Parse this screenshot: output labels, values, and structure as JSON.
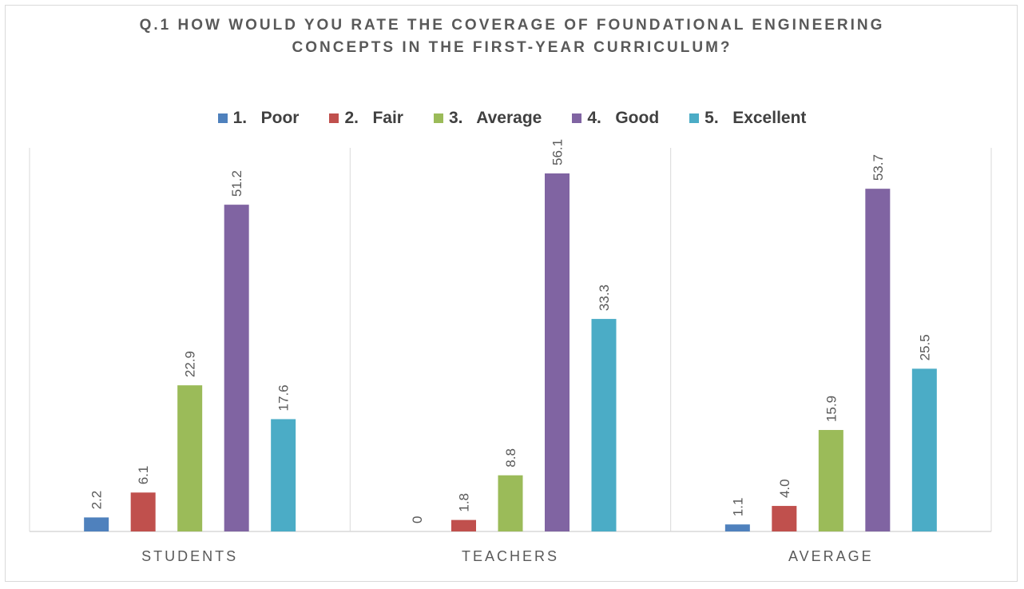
{
  "chart_data": {
    "type": "bar",
    "title_lines": [
      "Q.1 HOW WOULD YOU RATE THE COVERAGE OF FOUNDATIONAL ENGINEERING",
      "CONCEPTS IN THE FIRST-YEAR CURRICULUM?"
    ],
    "categories": [
      "STUDENTS",
      "TEACHERS",
      "AVERAGE"
    ],
    "series": [
      {
        "name": "1.   Poor",
        "color": "#4f81bd",
        "values": [
          2.2,
          0,
          1.1
        ],
        "labels": [
          "2.2",
          "0",
          "1.1"
        ]
      },
      {
        "name": "2.   Fair",
        "color": "#c0504d",
        "values": [
          6.1,
          1.8,
          4.0
        ],
        "labels": [
          "6.1",
          "1.8",
          "4.0"
        ]
      },
      {
        "name": "3.   Average",
        "color": "#9bbb59",
        "values": [
          22.9,
          8.8,
          15.9
        ],
        "labels": [
          "22.9",
          "8.8",
          "15.9"
        ]
      },
      {
        "name": "4.   Good",
        "color": "#8064a2",
        "values": [
          51.2,
          56.1,
          53.7
        ],
        "labels": [
          "51.2",
          "56.1",
          "53.7"
        ]
      },
      {
        "name": "5.   Excellent",
        "color": "#4bacc6",
        "values": [
          17.6,
          33.3,
          25.5
        ],
        "labels": [
          "17.6",
          "33.3",
          "25.5"
        ]
      }
    ],
    "xlabel": "",
    "ylabel": "",
    "ylim": [
      0,
      60
    ],
    "grid": false,
    "legend_position": "top"
  }
}
